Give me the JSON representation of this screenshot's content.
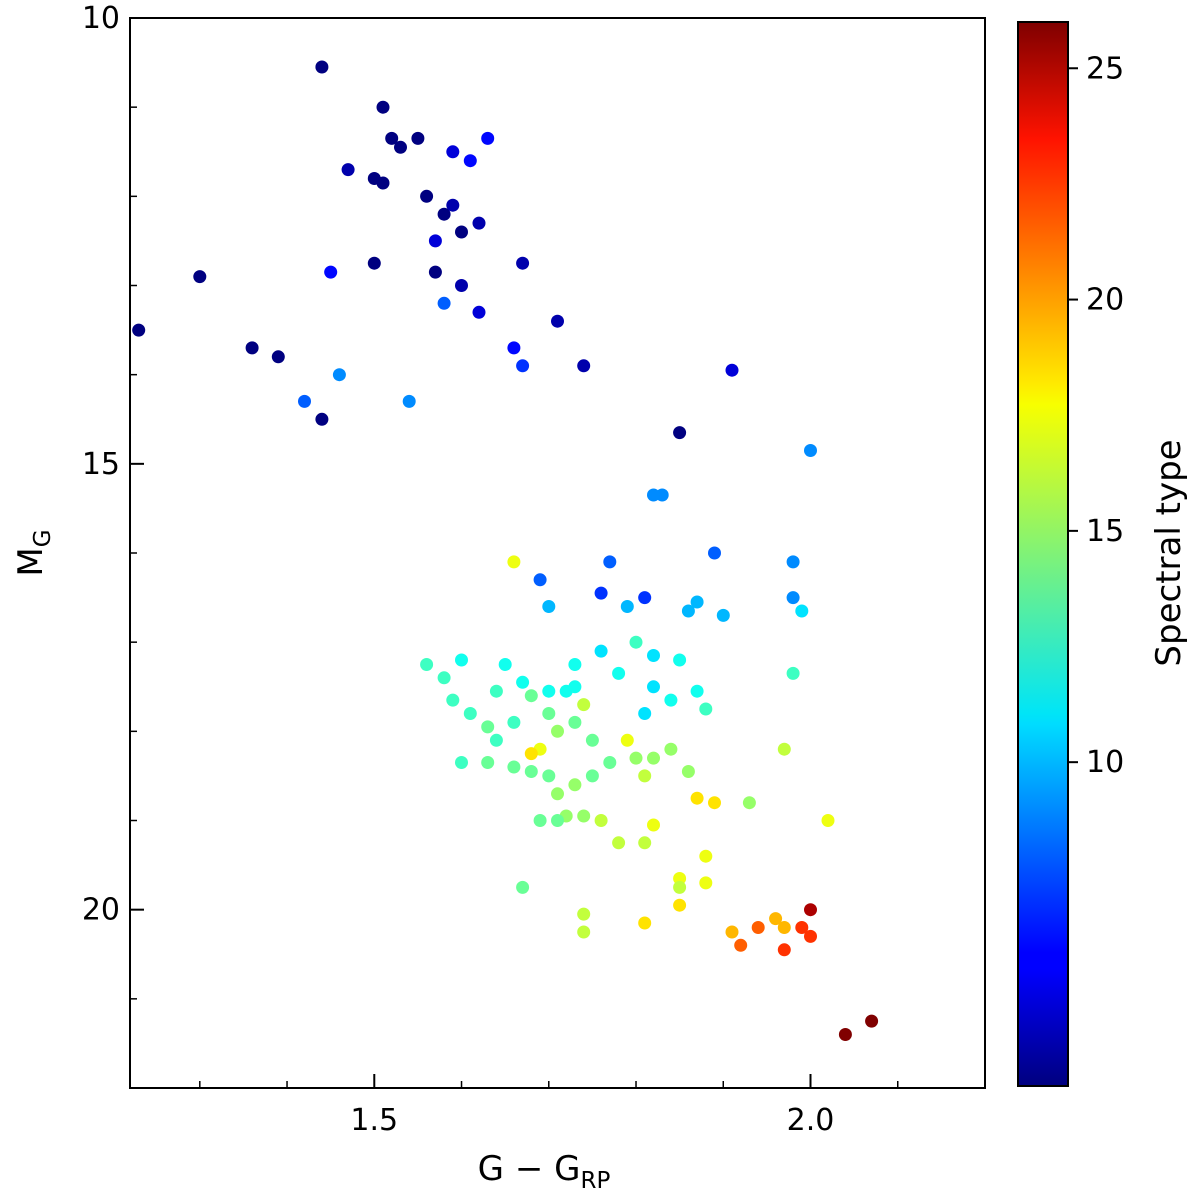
{
  "chart_data": {
    "type": "scatter",
    "title": "",
    "xlabel": {
      "main": "G − G",
      "sub": "RP"
    },
    "ylabel": {
      "main": "M",
      "sub": "G"
    },
    "xlim": [
      1.22,
      2.2
    ],
    "ylim": [
      22,
      10
    ],
    "y_inverted": true,
    "x_ticks": [
      {
        "value": 1.5,
        "label": "1.5"
      },
      {
        "value": 2.0,
        "label": "2.0"
      }
    ],
    "x_minor_ticks": [
      1.3,
      1.4,
      1.6,
      1.7,
      1.8,
      1.9,
      2.1
    ],
    "y_ticks": [
      {
        "value": 10,
        "label": "10"
      },
      {
        "value": 15,
        "label": "15"
      },
      {
        "value": 20,
        "label": "20"
      }
    ],
    "y_minor_ticks": [
      11,
      12,
      13,
      14,
      16,
      17,
      18,
      19,
      21
    ],
    "grid": false,
    "colorbar": {
      "label": "Spectral type",
      "colormap": "jet",
      "range": [
        3,
        26
      ],
      "ticks": [
        {
          "value": 10,
          "label": "10"
        },
        {
          "value": 15,
          "label": "15"
        },
        {
          "value": 20,
          "label": "20"
        },
        {
          "value": 25,
          "label": "25"
        }
      ]
    },
    "points": [
      [
        1.44,
        10.55,
        3
      ],
      [
        1.51,
        11.0,
        3
      ],
      [
        1.52,
        11.35,
        3
      ],
      [
        1.53,
        11.45,
        3
      ],
      [
        1.55,
        11.35,
        3
      ],
      [
        1.59,
        11.5,
        5
      ],
      [
        1.63,
        11.35,
        6
      ],
      [
        1.61,
        11.6,
        6
      ],
      [
        1.47,
        11.7,
        4
      ],
      [
        1.5,
        11.8,
        3
      ],
      [
        1.51,
        11.85,
        3
      ],
      [
        1.56,
        12.0,
        3
      ],
      [
        1.58,
        12.2,
        3
      ],
      [
        1.59,
        12.1,
        4
      ],
      [
        1.6,
        12.4,
        3
      ],
      [
        1.62,
        12.3,
        4
      ],
      [
        1.57,
        12.5,
        5
      ],
      [
        1.3,
        12.9,
        3
      ],
      [
        1.23,
        13.5,
        3
      ],
      [
        1.45,
        12.85,
        6
      ],
      [
        1.5,
        12.75,
        3
      ],
      [
        1.57,
        12.85,
        3
      ],
      [
        1.67,
        12.75,
        4
      ],
      [
        1.6,
        13.0,
        4
      ],
      [
        1.58,
        13.2,
        8
      ],
      [
        1.36,
        13.7,
        3
      ],
      [
        1.39,
        13.8,
        3
      ],
      [
        1.42,
        14.3,
        8
      ],
      [
        1.44,
        14.5,
        3
      ],
      [
        1.46,
        14.0,
        9
      ],
      [
        1.54,
        14.3,
        9
      ],
      [
        1.67,
        13.9,
        7
      ],
      [
        1.62,
        13.3,
        5
      ],
      [
        1.66,
        13.7,
        6
      ],
      [
        1.71,
        13.4,
        4
      ],
      [
        1.74,
        13.9,
        4
      ],
      [
        1.91,
        13.95,
        5
      ],
      [
        1.85,
        14.65,
        3
      ],
      [
        1.89,
        16.0,
        8
      ],
      [
        1.98,
        16.1,
        9
      ],
      [
        1.98,
        16.5,
        9
      ],
      [
        1.99,
        16.65,
        11
      ],
      [
        2.0,
        14.85,
        9
      ],
      [
        1.98,
        17.35,
        13
      ],
      [
        1.97,
        18.2,
        16
      ],
      [
        1.93,
        18.8,
        15
      ],
      [
        2.02,
        19.0,
        17
      ],
      [
        1.9,
        16.7,
        10
      ],
      [
        1.86,
        16.65,
        10
      ],
      [
        1.83,
        15.35,
        9
      ],
      [
        1.82,
        15.35,
        9
      ],
      [
        1.87,
        16.55,
        10
      ],
      [
        1.81,
        16.5,
        7
      ],
      [
        1.77,
        16.1,
        8
      ],
      [
        1.76,
        16.45,
        7
      ],
      [
        1.79,
        16.6,
        10
      ],
      [
        1.8,
        17.0,
        13
      ],
      [
        1.82,
        17.15,
        11
      ],
      [
        1.85,
        17.2,
        12
      ],
      [
        1.87,
        17.55,
        12
      ],
      [
        1.88,
        17.75,
        13
      ],
      [
        1.84,
        17.65,
        12
      ],
      [
        1.82,
        17.5,
        11
      ],
      [
        1.81,
        17.8,
        11
      ],
      [
        1.78,
        17.35,
        12
      ],
      [
        1.76,
        17.1,
        11
      ],
      [
        1.74,
        17.7,
        16
      ],
      [
        1.73,
        17.9,
        14
      ],
      [
        1.75,
        18.1,
        14
      ],
      [
        1.77,
        18.35,
        14
      ],
      [
        1.79,
        18.1,
        17
      ],
      [
        1.8,
        18.3,
        15
      ],
      [
        1.81,
        18.5,
        16
      ],
      [
        1.82,
        18.3,
        15
      ],
      [
        1.84,
        18.2,
        15
      ],
      [
        1.86,
        18.45,
        15
      ],
      [
        1.87,
        18.75,
        18
      ],
      [
        1.89,
        18.8,
        18
      ],
      [
        1.82,
        19.05,
        17
      ],
      [
        1.81,
        19.25,
        16
      ],
      [
        1.78,
        19.25,
        16
      ],
      [
        1.76,
        19.0,
        16
      ],
      [
        1.74,
        18.95,
        15
      ],
      [
        1.72,
        18.95,
        15
      ],
      [
        1.71,
        19.0,
        14
      ],
      [
        1.69,
        19.0,
        14
      ],
      [
        1.71,
        18.7,
        15
      ],
      [
        1.73,
        18.6,
        15
      ],
      [
        1.75,
        18.5,
        14
      ],
      [
        1.7,
        18.5,
        14
      ],
      [
        1.68,
        18.45,
        14
      ],
      [
        1.66,
        18.4,
        14
      ],
      [
        1.63,
        18.35,
        14
      ],
      [
        1.6,
        18.35,
        13
      ],
      [
        1.64,
        18.1,
        13
      ],
      [
        1.66,
        17.9,
        13
      ],
      [
        1.69,
        18.2,
        17
      ],
      [
        1.7,
        17.8,
        14
      ],
      [
        1.68,
        17.6,
        14
      ],
      [
        1.63,
        17.95,
        14
      ],
      [
        1.61,
        17.8,
        13
      ],
      [
        1.59,
        17.65,
        13
      ],
      [
        1.64,
        17.55,
        13
      ],
      [
        1.58,
        17.4,
        13
      ],
      [
        1.56,
        17.25,
        13
      ],
      [
        1.6,
        17.2,
        12
      ],
      [
        1.65,
        17.25,
        12
      ],
      [
        1.67,
        17.45,
        12
      ],
      [
        1.7,
        17.55,
        12
      ],
      [
        1.72,
        17.55,
        12
      ],
      [
        1.73,
        17.25,
        12
      ],
      [
        1.88,
        19.4,
        17
      ],
      [
        1.88,
        19.7,
        17
      ],
      [
        1.85,
        19.65,
        17
      ],
      [
        1.85,
        19.75,
        16
      ],
      [
        1.81,
        20.15,
        18
      ],
      [
        1.85,
        19.95,
        18
      ],
      [
        1.74,
        20.05,
        16
      ],
      [
        1.74,
        20.25,
        16
      ],
      [
        1.67,
        19.75,
        14
      ],
      [
        1.91,
        20.25,
        19
      ],
      [
        1.92,
        20.4,
        21
      ],
      [
        1.94,
        20.2,
        21
      ],
      [
        1.96,
        20.1,
        19
      ],
      [
        1.97,
        20.2,
        19
      ],
      [
        1.99,
        20.2,
        22
      ],
      [
        2.0,
        20.0,
        25
      ],
      [
        2.0,
        20.3,
        22
      ],
      [
        1.97,
        20.45,
        22
      ],
      [
        2.04,
        21.4,
        26
      ],
      [
        2.07,
        21.25,
        26
      ],
      [
        1.73,
        17.5,
        12
      ],
      [
        1.66,
        16.1,
        17
      ],
      [
        1.68,
        18.25,
        18
      ],
      [
        1.71,
        18.0,
        15
      ],
      [
        1.69,
        16.3,
        8
      ],
      [
        1.7,
        16.6,
        10
      ]
    ]
  }
}
